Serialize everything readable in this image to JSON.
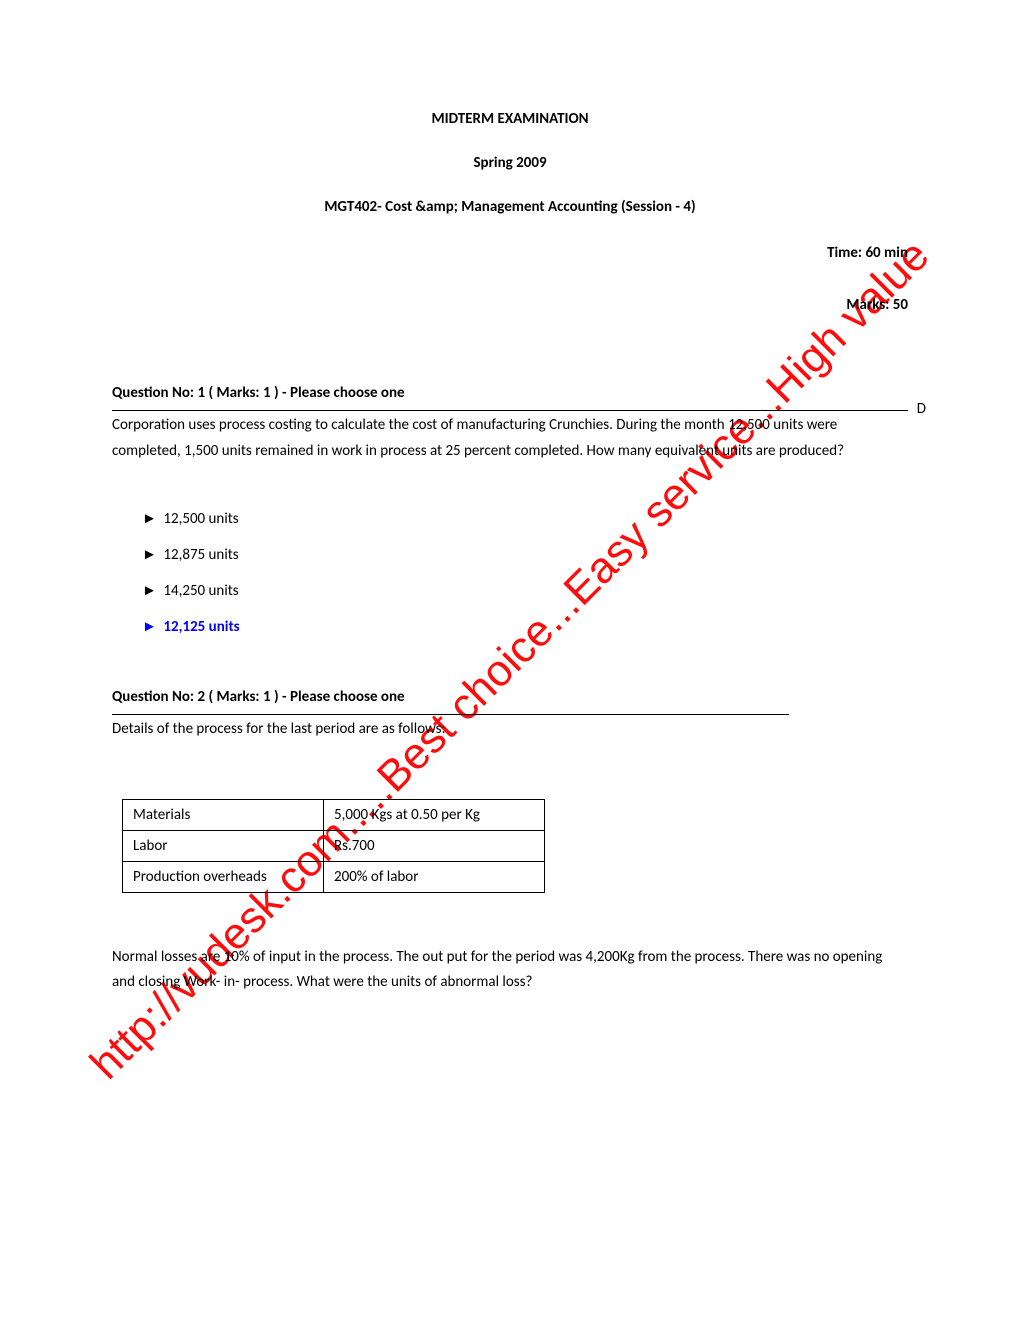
{
  "header": {
    "title": "MIDTERM  EXAMINATION",
    "term": "Spring 2009",
    "course": "MGT402- Cost &amp; Management Accounting (Session - 4)",
    "time": "Time: 60 min",
    "marks": "Marks: 50"
  },
  "watermark": "http://vudesk.com.....Best choice...Easy service...High value",
  "q1": {
    "header": "Question No: 1    ( Marks: 1 )    - Please choose one",
    "trailing_char": "D",
    "body": "Corporation uses process costing to calculate the cost of manufacturing Crunchies. During the month 12,500 units were completed, 1,500 units remained in work in process at 25 percent completed. How many equivalent units are produced?",
    "options": [
      {
        "text": "12,500 units",
        "is_answer": false
      },
      {
        "text": "12,875 units",
        "is_answer": false
      },
      {
        "text": "14,250 units",
        "is_answer": false
      },
      {
        "text": "12,125 units",
        "is_answer": true
      }
    ]
  },
  "q2": {
    "header": "Question No: 2    ( Marks: 1 )    - Please choose one",
    "body": "Details of the process for the last period are as follows:",
    "table": {
      "rows": [
        [
          "Materials",
          "5,000 Kgs at 0.50 per Kg"
        ],
        [
          "Labor",
          "Rs.700"
        ],
        [
          "Production overheads",
          "200% of labor"
        ]
      ]
    },
    "text_after": "Normal losses are 10% of input in the process. The out put for the period was 4,200Kg from the process. There was no opening and closing Work- in- process. What were the units of abnormal loss?"
  },
  "marker": "►"
}
